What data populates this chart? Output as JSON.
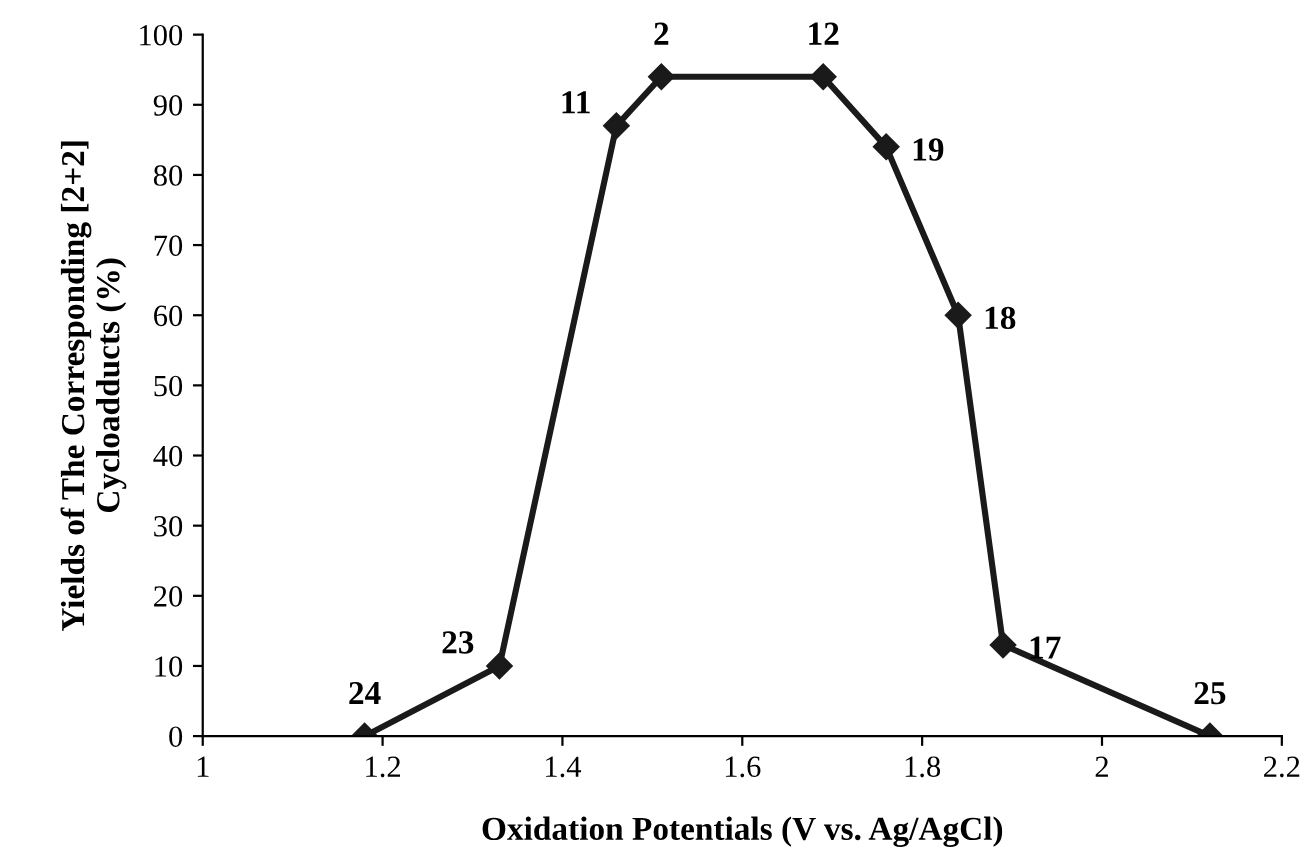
{
  "chart_data": {
    "type": "line",
    "xlabel": "Oxidation Potentials (V vs. Ag/AgCl)",
    "ylabel": "Yields of The Corresponding [2+2]\nCycloadducts (%)",
    "x": [
      1.18,
      1.33,
      1.46,
      1.51,
      1.69,
      1.76,
      1.84,
      1.89,
      2.12
    ],
    "series": [
      {
        "color": "#1a1a1a",
        "values": [
          0,
          10,
          87,
          94,
          94,
          84,
          60,
          13,
          0
        ]
      }
    ],
    "marker": "diamond",
    "line_style": "solid",
    "grid": false,
    "legend": false,
    "xlim": [
      1,
      2.2
    ],
    "xticks": [
      1,
      1.2,
      1.4,
      1.6,
      1.8,
      2,
      2.2
    ],
    "ylim": [
      0,
      100
    ],
    "yticks": [
      0,
      10,
      20,
      30,
      40,
      50,
      60,
      70,
      80,
      90,
      100
    ],
    "annotations": [
      {
        "text": "24",
        "x": 1.18,
        "y": 0
      },
      {
        "text": "23",
        "x": 1.33,
        "y": 10
      },
      {
        "text": "11",
        "x": 1.46,
        "y": 87
      },
      {
        "text": "2",
        "x": 1.51,
        "y": 94
      },
      {
        "text": "12",
        "x": 1.69,
        "y": 94
      },
      {
        "text": "19",
        "x": 1.76,
        "y": 84
      },
      {
        "text": "18",
        "x": 1.84,
        "y": 60
      },
      {
        "text": "17",
        "x": 1.89,
        "y": 13
      },
      {
        "text": "25",
        "x": 2.12,
        "y": 0
      }
    ]
  }
}
